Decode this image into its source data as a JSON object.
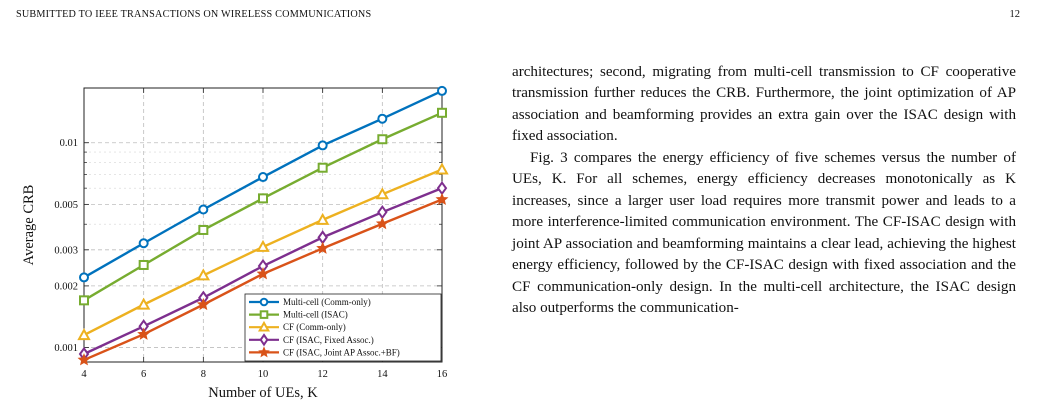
{
  "header": {
    "journal": "SUBMITTED TO IEEE TRANSACTIONS ON WIRELESS COMMUNICATIONS",
    "page_number": "12"
  },
  "body": {
    "paragraph_1": "architectures; second, migrating from multi-cell transmission to CF cooperative transmission further reduces the CRB. Furthermore, the joint optimization of AP association and beamforming provides an extra gain over the ISAC design with fixed association.",
    "paragraph_2": "Fig. 3 compares the energy efficiency of five schemes versus the number of UEs, K. For all schemes, energy efficiency decreases monotonically as K increases, since a larger user load requires more transmit power and leads to a more interference-limited communication environment. The CF-ISAC design with joint AP association and beamforming maintains a clear lead, achieving the highest energy efficiency, followed by the CF-ISAC design with fixed association and the CF communication-only design. In the multi-cell architecture, the ISAC design also outperforms the communication-"
  },
  "chart_data": {
    "type": "line",
    "xlabel": "Number of UEs, K",
    "ylabel": "Average CRB",
    "x": [
      4,
      6,
      8,
      10,
      12,
      14,
      16
    ],
    "xticks": [
      "4",
      "6",
      "8",
      "10",
      "12",
      "14",
      "16"
    ],
    "yscale": "log",
    "ylim": [
      0.00085,
      0.0185
    ],
    "yticks": [
      0.001,
      0.002,
      0.003,
      0.005,
      0.01
    ],
    "ytick_labels": [
      "0.001",
      "0.002",
      "0.003",
      "0.005",
      "0.01"
    ],
    "grid": true,
    "legend_position": "bottom-right",
    "series": [
      {
        "name": "Multi-cell (Comm-only)",
        "color": "#0072BD",
        "marker": "circle",
        "values": [
          0.0022,
          0.00323,
          0.00472,
          0.0068,
          0.0097,
          0.0131,
          0.0179
        ]
      },
      {
        "name": "Multi-cell (ISAC)",
        "color": "#77AC30",
        "marker": "square",
        "values": [
          0.0017,
          0.00253,
          0.00375,
          0.00535,
          0.00755,
          0.0104,
          0.014
        ]
      },
      {
        "name": "CF (Comm-only)",
        "color": "#EDB120",
        "marker": "triangle",
        "values": [
          0.00115,
          0.00162,
          0.00225,
          0.0031,
          0.0042,
          0.0056,
          0.0074
        ]
      },
      {
        "name": "CF (ISAC, Fixed Assoc.)",
        "color": "#7E2F8E",
        "marker": "diamond",
        "values": [
          0.00093,
          0.00127,
          0.00175,
          0.0025,
          0.00345,
          0.00458,
          0.006
        ]
      },
      {
        "name": "CF (ISAC, Joint AP Assoc.+BF)",
        "color": "#D95319",
        "marker": "star",
        "values": [
          0.00087,
          0.00116,
          0.00162,
          0.00229,
          0.00305,
          0.00402,
          0.00528
        ]
      }
    ]
  }
}
